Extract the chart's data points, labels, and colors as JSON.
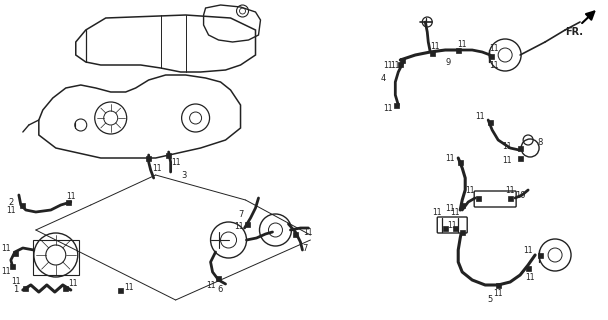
{
  "bg_color": "#ffffff",
  "lc": "#222222",
  "fig_width": 6.08,
  "fig_height": 3.2,
  "dpi": 100,
  "labels": {
    "fr": "FR.",
    "part1": "1",
    "part2": "2",
    "part3": "3",
    "part4": "4",
    "part5": "5",
    "part6": "6",
    "part7a": "7",
    "part7b": "7",
    "part8": "8",
    "part9": "9",
    "part10": "10",
    "clamp": "11"
  }
}
